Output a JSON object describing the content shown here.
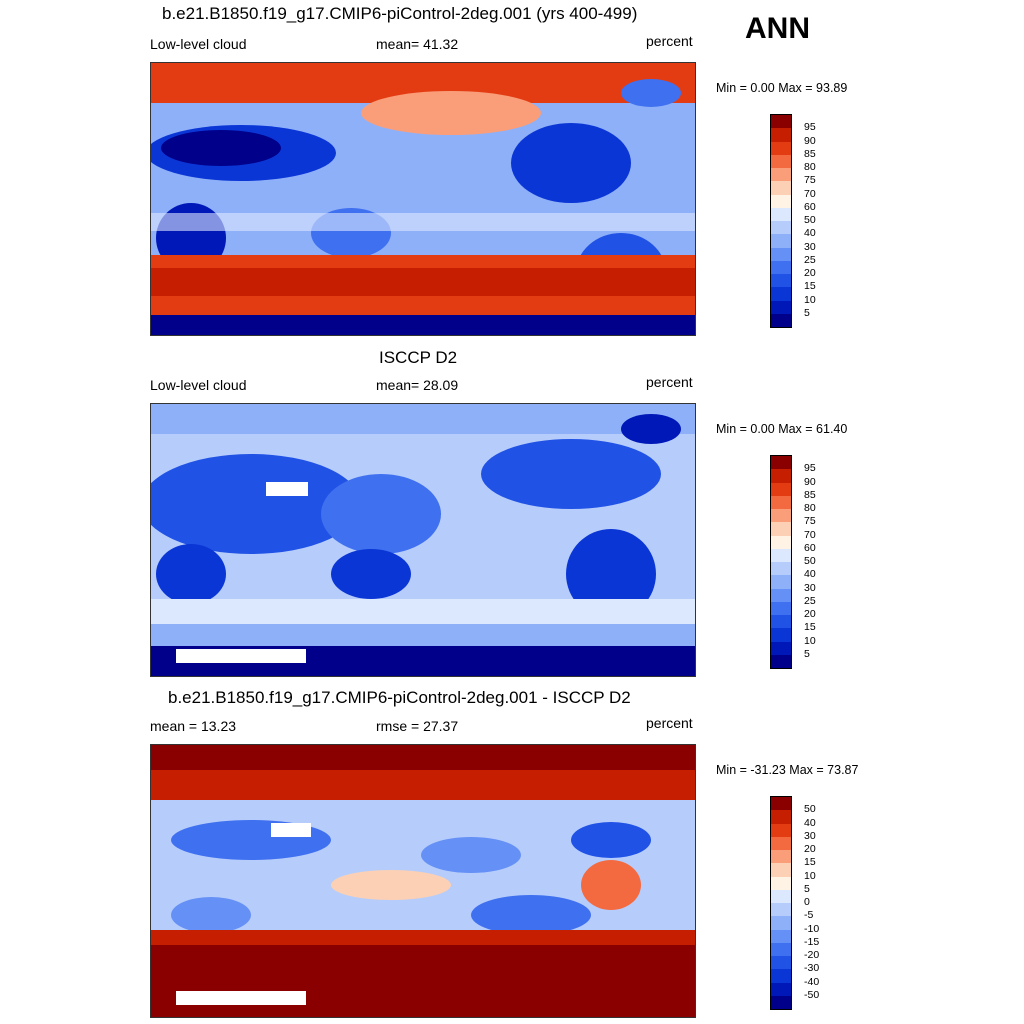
{
  "annotation": "ANN",
  "panels": [
    {
      "title": "b.e21.B1850.f19_g17.CMIP6-piControl-2deg.001 (yrs 400-499)",
      "left_label": "Low-level cloud",
      "center_label": "mean=  41.32",
      "right_label": "percent",
      "minmax": "Min =   0.00 Max =  93.89",
      "levels": [
        "5",
        "10",
        "15",
        "20",
        "25",
        "30",
        "40",
        "50",
        "60",
        "70",
        "75",
        "80",
        "85",
        "90",
        "95"
      ],
      "colors": [
        "#00008b",
        "#0018b8",
        "#0b36d6",
        "#2052e6",
        "#3f70f0",
        "#6590f6",
        "#8eb0f9",
        "#b6cdfb",
        "#dce8fd",
        "#fff3e6",
        "#fcd0b4",
        "#fa9e7a",
        "#f46a40",
        "#e33c12",
        "#c51e00",
        "#8a0000"
      ],
      "tone": "model"
    },
    {
      "title": "ISCCP D2",
      "left_label": "Low-level cloud",
      "center_label": "mean=  28.09",
      "right_label": "percent",
      "minmax": "Min =   0.00 Max =  61.40",
      "levels": [
        "5",
        "10",
        "15",
        "20",
        "25",
        "30",
        "40",
        "50",
        "60",
        "70",
        "75",
        "80",
        "85",
        "90",
        "95"
      ],
      "colors": [
        "#00008b",
        "#0018b8",
        "#0b36d6",
        "#2052e6",
        "#3f70f0",
        "#6590f6",
        "#8eb0f9",
        "#b6cdfb",
        "#dce8fd",
        "#fff3e6",
        "#fcd0b4",
        "#fa9e7a",
        "#f46a40",
        "#e33c12",
        "#c51e00",
        "#8a0000"
      ],
      "tone": "obs"
    },
    {
      "title": "b.e21.B1850.f19_g17.CMIP6-piControl-2deg.001 - ISCCP D2",
      "left_label": "mean =  13.23",
      "center_label": "rmse =  27.37",
      "right_label": "percent",
      "minmax": "Min = -31.23 Max =  73.87",
      "levels": [
        "-50",
        "-40",
        "-30",
        "-20",
        "-15",
        "-10",
        "-5",
        "0",
        "5",
        "10",
        "15",
        "20",
        "30",
        "40",
        "50"
      ],
      "colors": [
        "#00008b",
        "#0018b8",
        "#0b36d6",
        "#2052e6",
        "#3f70f0",
        "#6590f6",
        "#8eb0f9",
        "#b6cdfb",
        "#dce8fd",
        "#fff3e6",
        "#fcd0b4",
        "#fa9e7a",
        "#f46a40",
        "#e33c12",
        "#c51e00",
        "#8a0000"
      ],
      "tone": "diff"
    }
  ]
}
